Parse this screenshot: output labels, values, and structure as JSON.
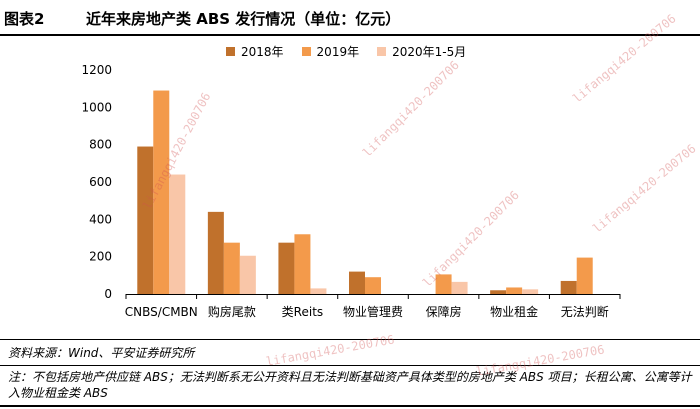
{
  "figure": {
    "label": "图表2",
    "title": "近年来房地产类 ABS 发行情况（单位：亿元）"
  },
  "colors": {
    "s2018": "#C0712C",
    "s2019": "#F39A4B",
    "s2020": "#F9C6A8"
  },
  "chart_data": {
    "type": "bar",
    "categories": [
      "CNBS/CMBN",
      "购房尾款",
      "类Reits",
      "物业管理费",
      "保障房",
      "物业租金",
      "无法判断"
    ],
    "series": [
      {
        "name": "2018年",
        "values": [
          790,
          440,
          275,
          120,
          0,
          20,
          70
        ]
      },
      {
        "name": "2019年",
        "values": [
          1090,
          275,
          320,
          90,
          105,
          35,
          195
        ]
      },
      {
        "name": "2020年1-5月",
        "values": [
          640,
          205,
          30,
          0,
          65,
          25,
          0
        ]
      }
    ],
    "yticks": [
      0,
      200,
      400,
      600,
      800,
      1000,
      1200
    ],
    "ylim": [
      0,
      1200
    ],
    "legend_position": "top"
  },
  "footer": {
    "source": "资料来源：Wind、平安证券研究所",
    "note": "注：不包括房地产供应链 ABS；无法判断系无公开资料且无法判断基础资产具体类型的房地产类 ABS 项目；长租公寓、公寓等计入物业租金类 ABS"
  },
  "watermark": {
    "text": "lifangqi420-200706"
  }
}
